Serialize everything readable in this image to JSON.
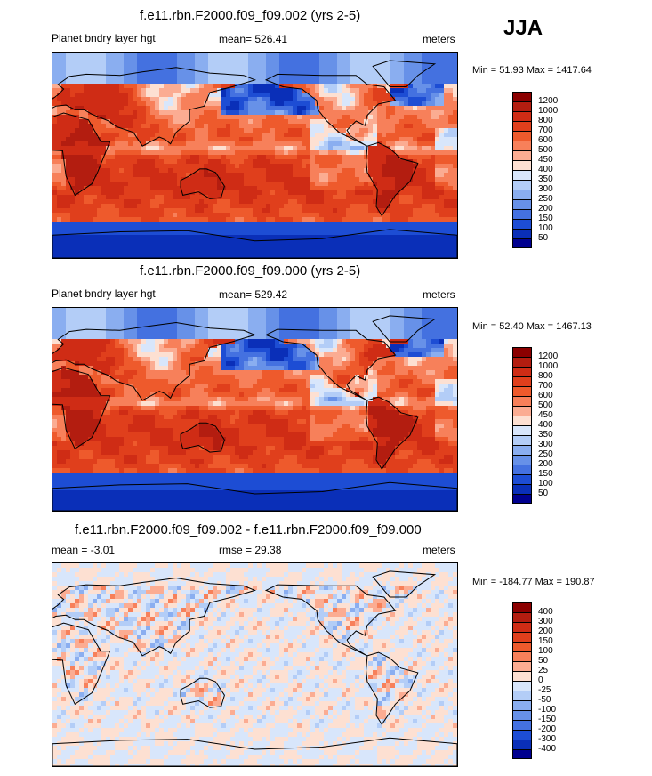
{
  "season": "JJA",
  "panels": [
    {
      "title": "f.e11.rbn.F2000.f09_f09.002 (yrs 2-5)",
      "left": "Planet bndry layer hgt",
      "mid": "mean= 526.41",
      "right": "meters",
      "minmax": "Min =  51.93 Max = 1417.64",
      "kind": "abs",
      "legend_labels": [
        "1200",
        "1000",
        "800",
        "700",
        "600",
        "500",
        "450",
        "400",
        "350",
        "300",
        "250",
        "200",
        "150",
        "100",
        "50"
      ]
    },
    {
      "title": "f.e11.rbn.F2000.f09_f09.000 (yrs 2-5)",
      "left": "Planet bndry layer hgt",
      "mid": "mean= 529.42",
      "right": "meters",
      "minmax": "Min =  52.40 Max = 1467.13",
      "kind": "abs",
      "legend_labels": [
        "1200",
        "1000",
        "800",
        "700",
        "600",
        "500",
        "450",
        "400",
        "350",
        "300",
        "250",
        "200",
        "150",
        "100",
        "50"
      ]
    },
    {
      "title": "f.e11.rbn.F2000.f09_f09.002 - f.e11.rbn.F2000.f09_f09.000",
      "left": "mean =  -3.01",
      "mid": "rmse =  29.38",
      "right": "meters",
      "minmax": "Min = -184.77 Max = 190.87",
      "kind": "diff",
      "legend_labels": [
        "400",
        "300",
        "200",
        "150",
        "100",
        "50",
        "25",
        "0",
        "-25",
        "-50",
        "-100",
        "-150",
        "-200",
        "-300",
        "-400"
      ]
    }
  ],
  "colors": {
    "scale": [
      "#8b0000",
      "#b31d10",
      "#cf2c15",
      "#e03f1c",
      "#ee5a2c",
      "#f7805a",
      "#fbac92",
      "#fde0d2",
      "#d8e6fb",
      "#b3cdf7",
      "#8aaef0",
      "#6791e8",
      "#4471e0",
      "#1d4dd4",
      "#0a2fb8",
      "#00008f"
    ]
  }
}
